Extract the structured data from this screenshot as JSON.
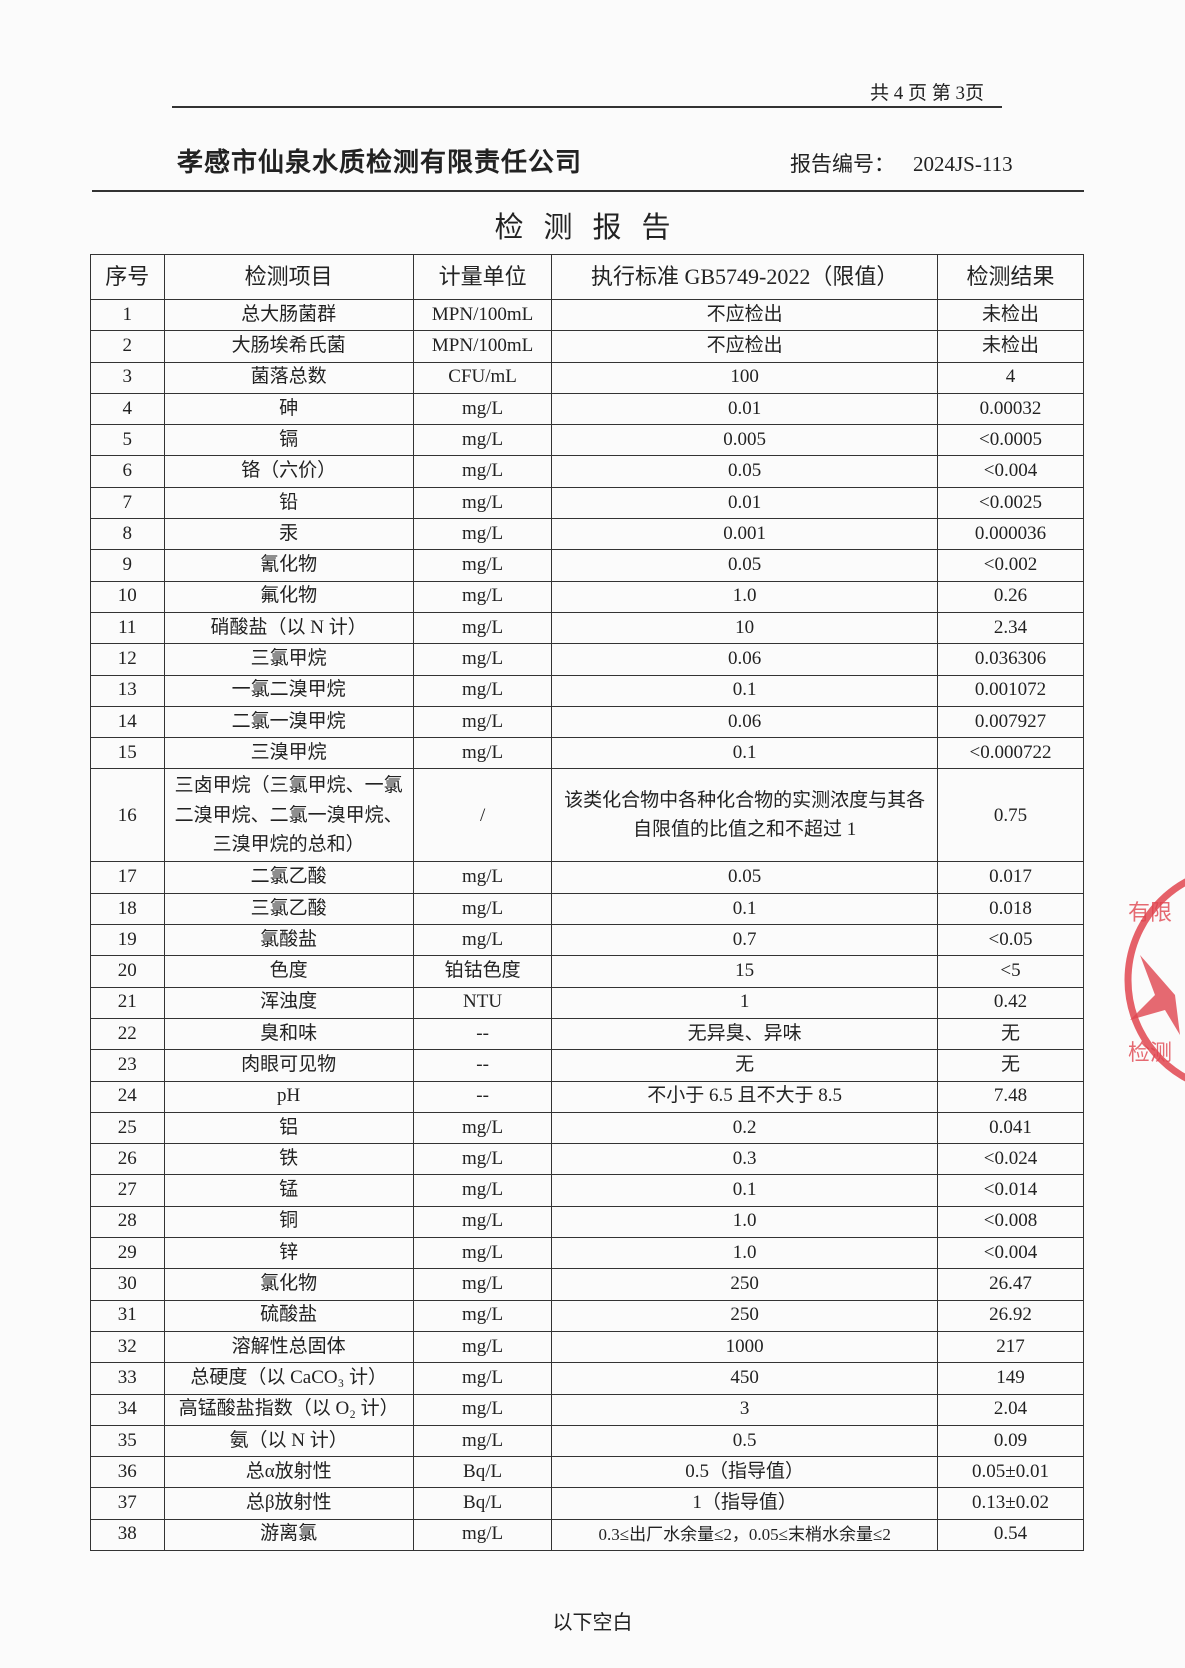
{
  "page_info": "共 4 页  第 3页",
  "company": "孝感市仙泉水质检测有限责任公司",
  "report_no_label": "报告编号：",
  "report_no": "2024JS-113",
  "title": "检测报告",
  "headers": [
    "序号",
    "检测项目",
    "计量单位",
    "执行标准 GB5749-2022（限值）",
    "检测结果"
  ],
  "rows": [
    [
      "1",
      "总大肠菌群",
      "MPN/100mL",
      "不应检出",
      "未检出"
    ],
    [
      "2",
      "大肠埃希氏菌",
      "MPN/100mL",
      "不应检出",
      "未检出"
    ],
    [
      "3",
      "菌落总数",
      "CFU/mL",
      "100",
      "4"
    ],
    [
      "4",
      "砷",
      "mg/L",
      "0.01",
      "0.00032"
    ],
    [
      "5",
      "镉",
      "mg/L",
      "0.005",
      "<0.0005"
    ],
    [
      "6",
      "铬（六价）",
      "mg/L",
      "0.05",
      "<0.004"
    ],
    [
      "7",
      "铅",
      "mg/L",
      "0.01",
      "<0.0025"
    ],
    [
      "8",
      "汞",
      "mg/L",
      "0.001",
      "0.000036"
    ],
    [
      "9",
      "氰化物",
      "mg/L",
      "0.05",
      "<0.002"
    ],
    [
      "10",
      "氟化物",
      "mg/L",
      "1.0",
      "0.26"
    ],
    [
      "11",
      "硝酸盐（以 N 计）",
      "mg/L",
      "10",
      "2.34"
    ],
    [
      "12",
      "三氯甲烷",
      "mg/L",
      "0.06",
      "0.036306"
    ],
    [
      "13",
      "一氯二溴甲烷",
      "mg/L",
      "0.1",
      "0.001072"
    ],
    [
      "14",
      "二氯一溴甲烷",
      "mg/L",
      "0.06",
      "0.007927"
    ],
    [
      "15",
      "三溴甲烷",
      "mg/L",
      "0.1",
      "<0.000722"
    ],
    [
      "16",
      "三卤甲烷（三氯甲烷、一氯二溴甲烷、二氯一溴甲烷、三溴甲烷的总和）",
      "/",
      "该类化合物中各种化合物的实测浓度与其各自限值的比值之和不超过 1",
      "0.75"
    ],
    [
      "17",
      "二氯乙酸",
      "mg/L",
      "0.05",
      "0.017"
    ],
    [
      "18",
      "三氯乙酸",
      "mg/L",
      "0.1",
      "0.018"
    ],
    [
      "19",
      "氯酸盐",
      "mg/L",
      "0.7",
      "<0.05"
    ],
    [
      "20",
      "色度",
      "铂钴色度",
      "15",
      "<5"
    ],
    [
      "21",
      "浑浊度",
      "NTU",
      "1",
      "0.42"
    ],
    [
      "22",
      "臭和味",
      "--",
      "无异臭、异味",
      "无"
    ],
    [
      "23",
      "肉眼可见物",
      "--",
      "无",
      "无"
    ],
    [
      "24",
      "pH",
      "--",
      "不小于 6.5 且不大于 8.5",
      "7.48"
    ],
    [
      "25",
      "铝",
      "mg/L",
      "0.2",
      "0.041"
    ],
    [
      "26",
      "铁",
      "mg/L",
      "0.3",
      "<0.024"
    ],
    [
      "27",
      "锰",
      "mg/L",
      "0.1",
      "<0.014"
    ],
    [
      "28",
      "铜",
      "mg/L",
      "1.0",
      "<0.008"
    ],
    [
      "29",
      "锌",
      "mg/L",
      "1.0",
      "<0.004"
    ],
    [
      "30",
      "氯化物",
      "mg/L",
      "250",
      "26.47"
    ],
    [
      "31",
      "硫酸盐",
      "mg/L",
      "250",
      "26.92"
    ],
    [
      "32",
      "溶解性总固体",
      "mg/L",
      "1000",
      "217"
    ],
    [
      "33",
      "总硬度（以 CaCO₃ 计）",
      "mg/L",
      "450",
      "149"
    ],
    [
      "34",
      "高锰酸盐指数（以 O₂ 计）",
      "mg/L",
      "3",
      "2.04"
    ],
    [
      "35",
      "氨（以 N 计）",
      "mg/L",
      "0.5",
      "0.09"
    ],
    [
      "36",
      "总α放射性",
      "Bq/L",
      "0.5（指导值）",
      "0.05±0.01"
    ],
    [
      "37",
      "总β放射性",
      "Bq/L",
      "1（指导值）",
      "0.13±0.02"
    ],
    [
      "38",
      "游离氯",
      "mg/L",
      "0.3≤出厂水余量≤2，0.05≤末梢水余量≤2",
      "0.54"
    ]
  ],
  "footer": "以下空白",
  "stamp": {
    "text": "有限责任…检测",
    "color": "#e0454f"
  }
}
